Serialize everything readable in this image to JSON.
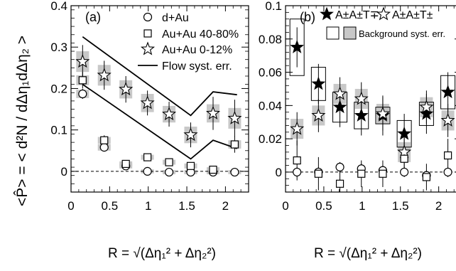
{
  "chart_data": [
    {
      "type": "scatter",
      "panel_label": "(a)",
      "ylabel": "<P̂> = < d²N / dΔη₁dΔη₂ >",
      "xlabel": "R = √(Δη₁² + Δη₂²)",
      "xlim": [
        0,
        2.3
      ],
      "ylim": [
        -0.05,
        0.4
      ],
      "xticks": [
        0,
        0.5,
        1,
        1.5,
        2
      ],
      "yticks": [
        0,
        0.1,
        0.2,
        0.3,
        0.4
      ],
      "tick_labels_x": [
        "0",
        "0.5",
        "1",
        "1.5",
        "2"
      ],
      "tick_labels_y": [
        "0",
        "0.1",
        "0.2",
        "0.3",
        "0.4"
      ],
      "legend": {
        "placement": "top-right",
        "entries": [
          {
            "label": "d+Au",
            "marker": "circle"
          },
          {
            "label": "Au+Au 40-80%",
            "marker": "square"
          },
          {
            "label": "Au+Au 0-12%",
            "marker": "star-open"
          },
          {
            "label": "Flow syst. err.",
            "marker": "line"
          }
        ]
      },
      "x": [
        0.15,
        0.43,
        0.71,
        0.99,
        1.27,
        1.55,
        1.84,
        2.12
      ],
      "series": [
        {
          "name": "d+Au",
          "marker": "circle",
          "values": [
            0.187,
            0.058,
            0.013,
            0.0,
            -0.002,
            -0.002,
            -0.002,
            -0.002
          ],
          "errors": [
            0.012,
            0.008,
            0.006,
            0.005,
            0.005,
            0.005,
            0.005,
            0.005
          ],
          "syst": [
            0.01,
            0.008,
            0.006,
            0.005,
            0.005,
            0.005,
            0.005,
            0.005
          ]
        },
        {
          "name": "Au+Au 40-80%",
          "marker": "square",
          "values": [
            0.22,
            0.075,
            0.018,
            0.034,
            0.022,
            0.013,
            0.004,
            0.065
          ],
          "errors": [
            0.02,
            0.012,
            0.008,
            0.008,
            0.008,
            0.008,
            0.008,
            0.02
          ],
          "syst": [
            0.012,
            0.008,
            0.006,
            0.006,
            0.006,
            0.006,
            0.006,
            0.01
          ]
        },
        {
          "name": "Au+Au 0-12%",
          "marker": "star-open",
          "values": [
            0.265,
            0.232,
            0.198,
            0.165,
            0.138,
            0.088,
            0.14,
            0.128
          ],
          "errors": [
            0.04,
            0.035,
            0.032,
            0.03,
            0.03,
            0.03,
            0.04,
            0.045
          ],
          "syst": [
            0.025,
            0.025,
            0.022,
            0.022,
            0.02,
            0.02,
            0.022,
            0.025
          ]
        }
      ],
      "flow_syst_err": {
        "name": "Flow syst. err.",
        "upper": {
          "x": [
            0.15,
            1.55,
            1.84,
            2.15
          ],
          "y": [
            0.325,
            0.135,
            0.192,
            0.185
          ]
        },
        "lower": {
          "x": [
            0.15,
            1.55,
            1.84,
            2.15
          ],
          "y": [
            0.21,
            0.03,
            0.075,
            0.055
          ]
        }
      }
    },
    {
      "type": "scatter",
      "panel_label": "(b)",
      "xlabel": "R = √(Δη₁² + Δη₂²)",
      "xlim": [
        0,
        2.3
      ],
      "ylim": [
        -0.012,
        0.1
      ],
      "xticks": [
        0,
        0.5,
        1,
        1.5,
        2
      ],
      "yticks": [
        0,
        0.02,
        0.04,
        0.06,
        0.08,
        0.1
      ],
      "tick_labels_x": [
        "0",
        "0.5",
        "1",
        "1.5",
        "2"
      ],
      "tick_labels_y": [
        "0",
        "0.02",
        "0.04",
        "0.06",
        "0.08",
        "0.1"
      ],
      "legend": {
        "placement": "top",
        "entries": [
          {
            "label": "A±A±T∓",
            "marker": "star-filled"
          },
          {
            "label": "A±A±T±",
            "marker": "star-open"
          },
          {
            "label": "Background syst. err.",
            "marker": "boxes"
          }
        ]
      },
      "x": [
        0.15,
        0.43,
        0.71,
        0.99,
        1.27,
        1.55,
        1.84,
        2.12
      ],
      "series": [
        {
          "name": "A±A±T∓",
          "marker": "star-filled",
          "values": [
            0.075,
            0.053,
            0.039,
            0.034,
            0.034,
            0.023,
            0.035,
            0.048
          ],
          "errors": [
            0.012,
            0.012,
            0.012,
            0.012,
            0.012,
            0.012,
            0.012,
            0.012
          ],
          "box": [
            0.017,
            0.01,
            0.009,
            0.008,
            0.005,
            0.008,
            0.007,
            0.01
          ]
        },
        {
          "name": "A±A±T±",
          "marker": "star-open",
          "values": [
            0.026,
            0.034,
            0.047,
            0.044,
            0.035,
            0.012,
            0.039,
            0.031
          ],
          "errors": [
            0.01,
            0.01,
            0.01,
            0.01,
            0.01,
            0.01,
            0.01,
            0.01
          ],
          "syst": [
            0.006,
            0.006,
            0.006,
            0.006,
            0.006,
            0.006,
            0.006,
            0.006
          ]
        },
        {
          "name": "circle",
          "marker": "circle",
          "values": [
            0.0,
            0.0,
            0.003,
            0.002,
            0.001,
            0.0,
            -0.002,
            0.0
          ],
          "errors": [
            0.003,
            0.003,
            0.003,
            0.003,
            0.003,
            0.003,
            0.003,
            0.003
          ]
        },
        {
          "name": "square",
          "marker": "square",
          "values": [
            0.007,
            -0.001,
            -0.007,
            -0.001,
            -0.001,
            0.008,
            -0.003,
            0.01
          ],
          "errors": [
            0.012,
            0.01,
            0.008,
            0.008,
            0.008,
            0.008,
            0.008,
            0.01
          ]
        }
      ]
    }
  ]
}
